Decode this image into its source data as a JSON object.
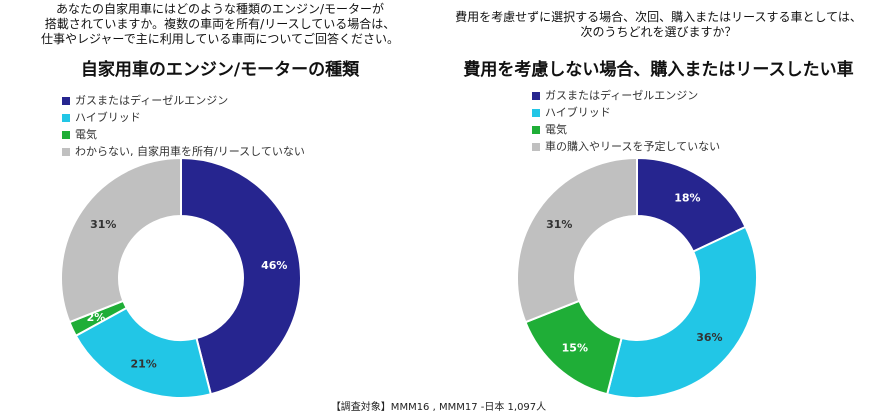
{
  "questions": {
    "left": "あなたの自家用車にはどのような種類のエンジン/モーターが\n搭載されていますか。複数の車両を所有/リースしている場合は、\n仕事やレジャーで主に利用している車両についてご回答ください。",
    "right": "費用を考慮せずに選択する場合、次回、購入またはリースする車としては、\n次のうちどれを選びますか？"
  },
  "footer": "【調査対象】MMM16 , MMM17 -日本 1,097人",
  "chart_data": [
    {
      "type": "donut",
      "title": "自家用車のエンジン/モーターの種類",
      "categories": [
        "ガスまたはディーゼルエンジン",
        "ハイブリッド",
        "電気",
        "わからない, 自家用車を所有/リースしていない"
      ],
      "values": [
        46,
        21,
        2,
        31
      ],
      "labels": [
        "46%",
        "21%",
        "2%",
        "31%"
      ],
      "colors": [
        "#26258f",
        "#22c6e6",
        "#1fae37",
        "#c0c0c0"
      ],
      "label_colors": [
        "#ffffff",
        "#333333",
        "#ffffff",
        "#333333"
      ],
      "legend_position": "top-left"
    },
    {
      "type": "donut",
      "title": "費用を考慮しない場合、購入またはリースしたい車",
      "categories": [
        "ガスまたはディーゼルエンジン",
        "ハイブリッド",
        "電気",
        "車の購入やリースを予定していない"
      ],
      "values": [
        18,
        36,
        15,
        31
      ],
      "labels": [
        "18%",
        "36%",
        "15%",
        "31%"
      ],
      "colors": [
        "#26258f",
        "#22c6e6",
        "#1fae37",
        "#c0c0c0"
      ],
      "label_colors": [
        "#ffffff",
        "#333333",
        "#ffffff",
        "#333333"
      ],
      "legend_position": "top-left"
    }
  ]
}
